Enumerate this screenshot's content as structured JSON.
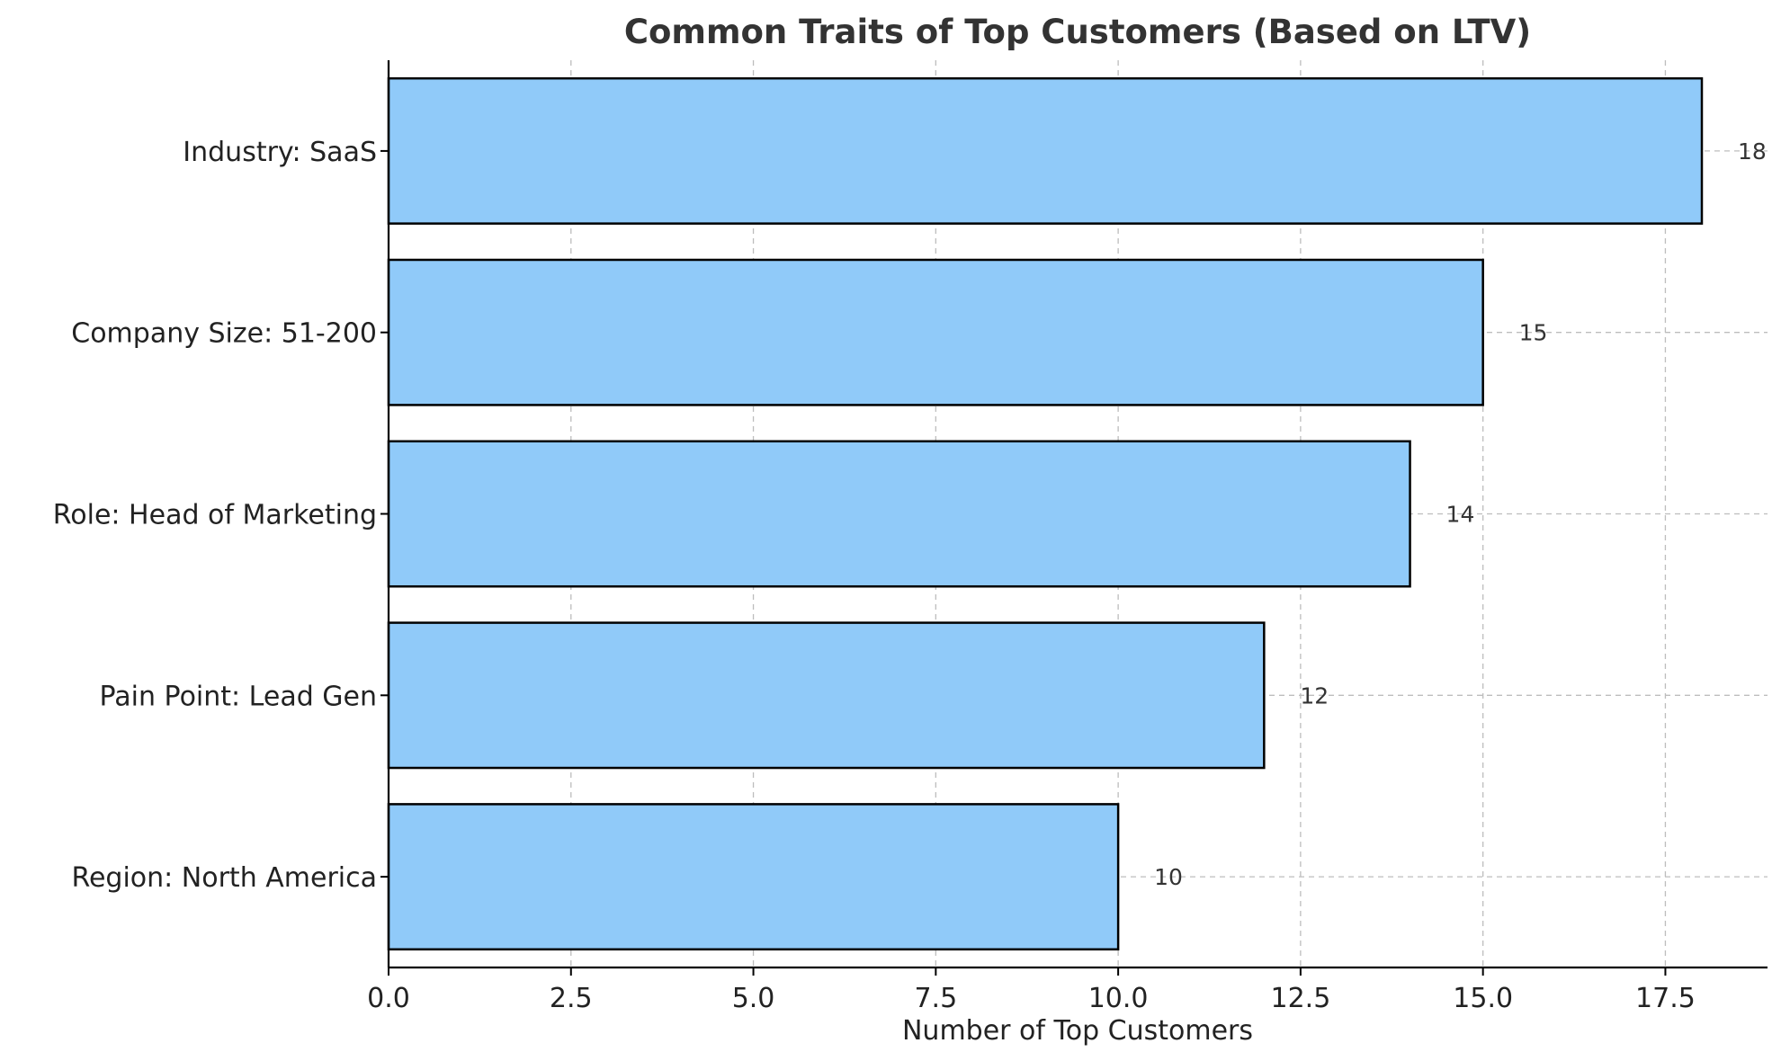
{
  "chart_data": {
    "type": "bar",
    "orientation": "horizontal",
    "title": "Common Traits of Top Customers (Based on LTV)",
    "xlabel": "Number of Top Customers",
    "ylabel": "",
    "categories": [
      "Industry: SaaS",
      "Company Size: 51-200",
      "Role: Head of Marketing",
      "Pain Point: Lead Gen",
      "Region: North America"
    ],
    "values": [
      18,
      15,
      14,
      12,
      10
    ],
    "value_labels": [
      "18",
      "15",
      "14",
      "12",
      "10"
    ],
    "xlim": [
      0,
      18.9
    ],
    "xticks": [
      0,
      2.5,
      5,
      7.5,
      10,
      12.5,
      15,
      17.5
    ],
    "xtick_labels": [
      "0.0",
      "2.5",
      "5.0",
      "7.5",
      "10.0",
      "12.5",
      "15.0",
      "17.5"
    ],
    "grid": true,
    "bar_color": "#90caf9",
    "bar_edge_color": "#000000"
  }
}
